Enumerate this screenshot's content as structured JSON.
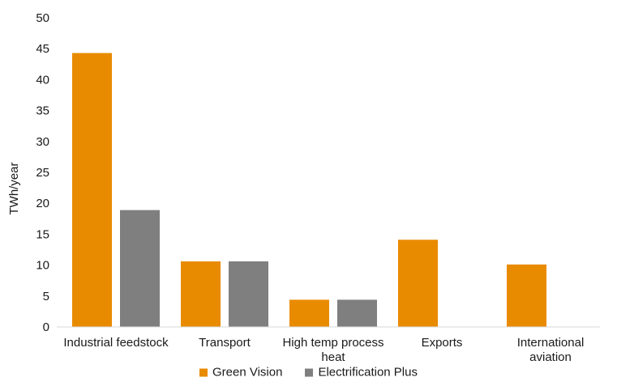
{
  "chart_data": {
    "type": "bar",
    "categories": [
      [
        "Industrial feedstock"
      ],
      [
        "Transport"
      ],
      [
        "High temp process",
        "heat"
      ],
      [
        "Exports"
      ],
      [
        "International",
        "aviation"
      ]
    ],
    "series": [
      {
        "name": "Green Vision",
        "color": "#E98B00",
        "values": [
          44.3,
          10.6,
          4.4,
          14.1,
          10.1
        ]
      },
      {
        "name": "Electrification Plus",
        "color": "#7F7F7F",
        "values": [
          18.9,
          10.6,
          4.4,
          null,
          null
        ]
      }
    ],
    "ylabel": "TWh/year",
    "ylim": [
      0,
      50
    ],
    "yticks": [
      0,
      5,
      10,
      15,
      20,
      25,
      30,
      35,
      40,
      45,
      50
    ],
    "grid": false,
    "legend": "bottom"
  }
}
